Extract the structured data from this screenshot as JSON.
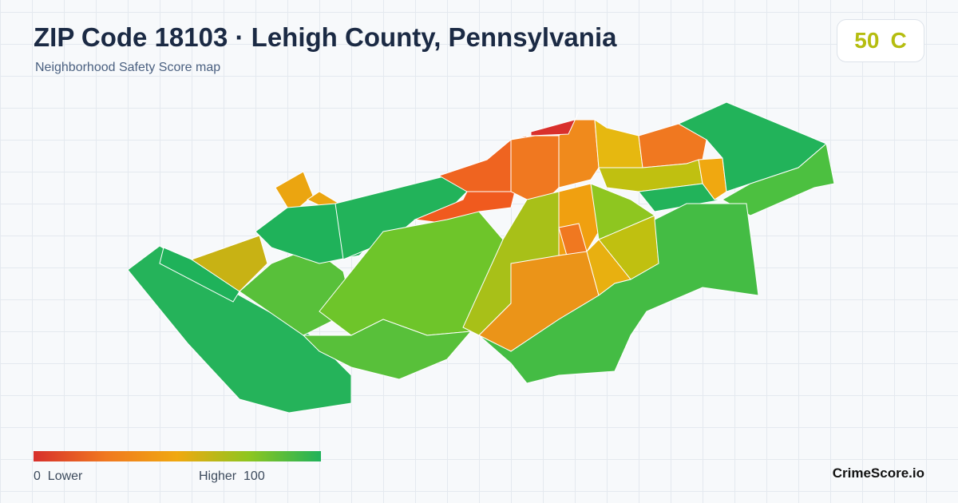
{
  "header": {
    "title": "ZIP Code 18103 · Lehigh County, Pennsylvania",
    "subtitle": "Neighborhood Safety Score map"
  },
  "score": {
    "value": 50,
    "grade": "C"
  },
  "legend": {
    "min": 0,
    "min_label": "Lower",
    "max_label": "Higher",
    "max": 100
  },
  "brand": "CrimeScore.io"
}
